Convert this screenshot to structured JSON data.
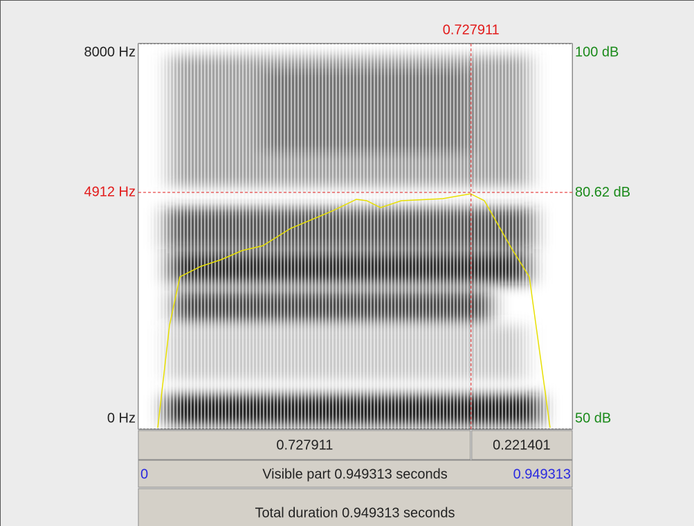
{
  "time": {
    "cursor": 0.727911,
    "right_part": 0.221401,
    "visible_start": 0,
    "visible_end": 0.949313,
    "visible_part_label": "Visible part 0.949313 seconds",
    "total_duration_label": "Total duration 0.949313 seconds"
  },
  "frequency": {
    "top": {
      "value": 8000,
      "label": "8000 Hz"
    },
    "cursor": {
      "value": 4912,
      "label": "4912 Hz"
    },
    "bottom": {
      "value": 0,
      "label": "0 Hz"
    }
  },
  "intensity": {
    "top": {
      "value": 100,
      "label": "100 dB"
    },
    "cursor": {
      "value": 80.62,
      "label": "80.62 dB"
    },
    "bottom": {
      "value": 50,
      "label": "50 dB"
    }
  }
}
